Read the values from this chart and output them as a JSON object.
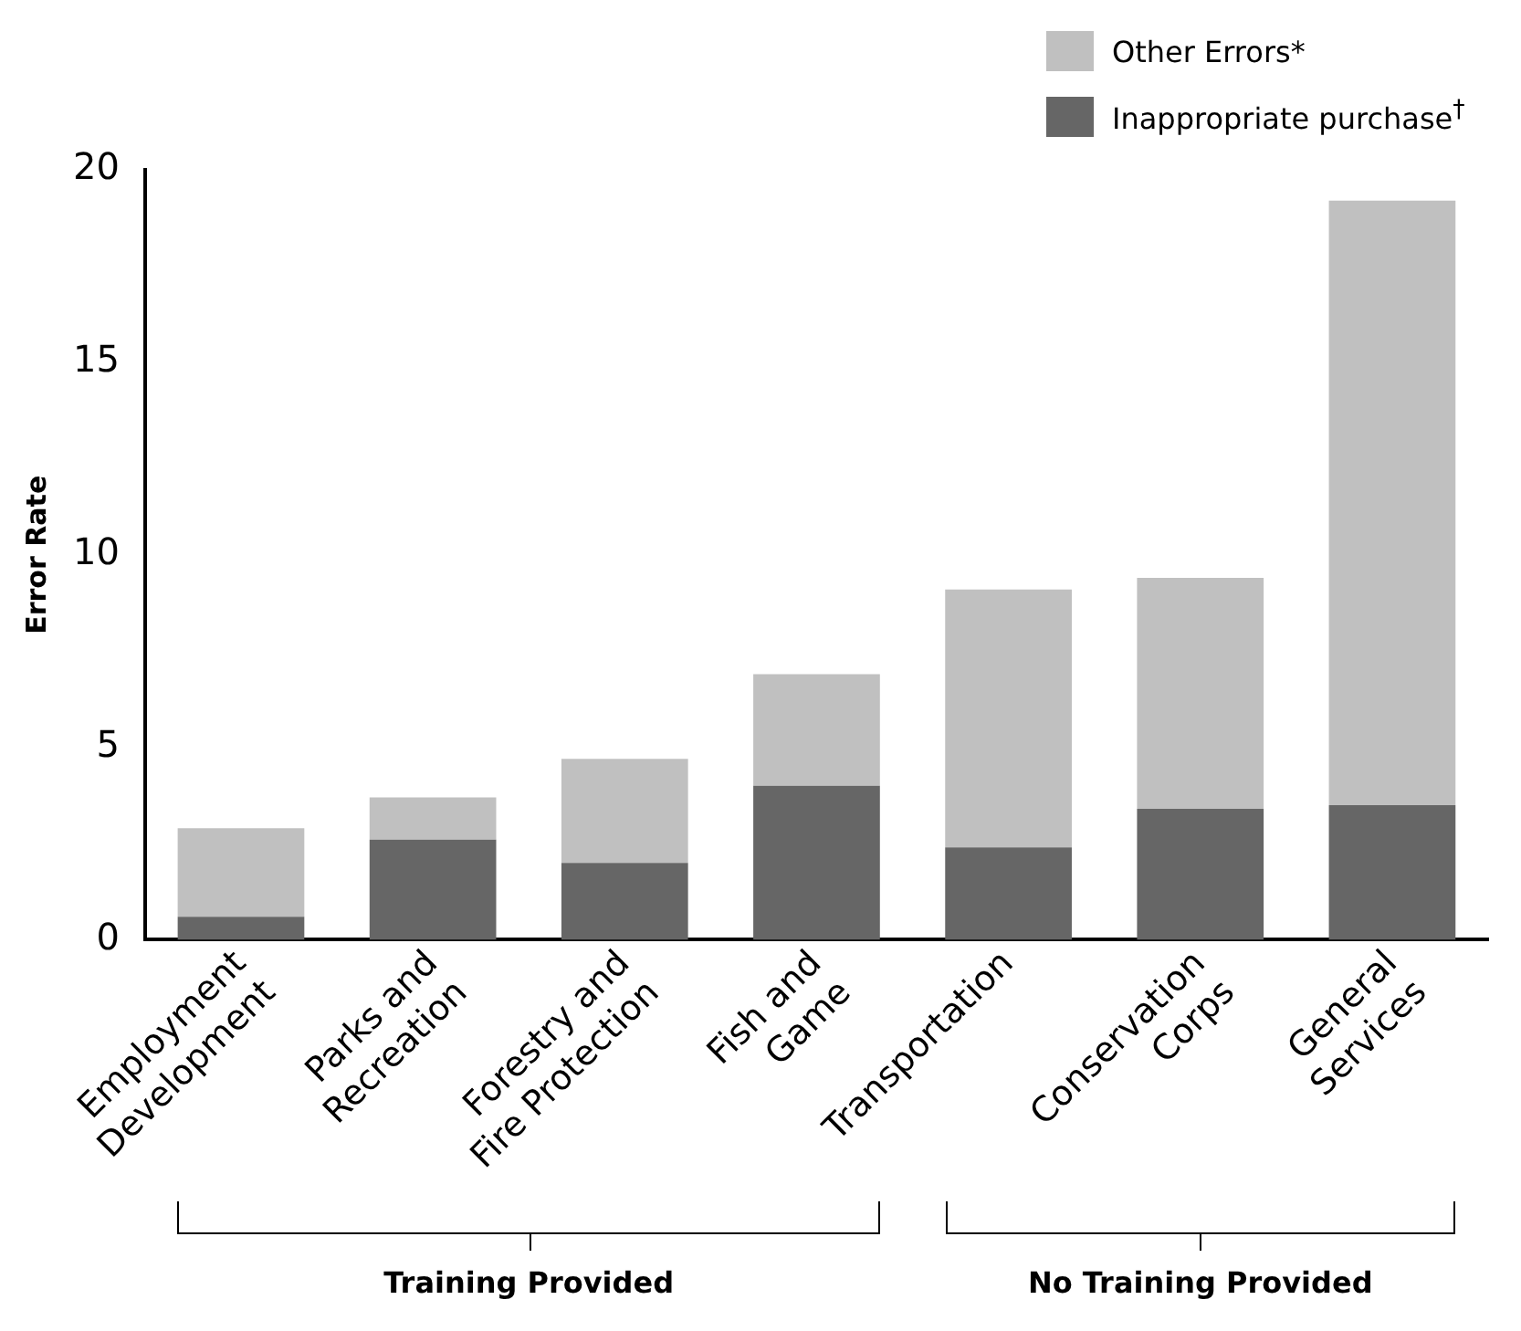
{
  "chart_data": {
    "type": "bar",
    "stacked": true,
    "ylabel": "Error Rate",
    "categories": [
      "Employment Development",
      "Parks and Recreation",
      "Forestry and Fire Protection",
      "Fish and Game",
      "Transportation",
      "Conservation Corps",
      "General Services"
    ],
    "series": [
      {
        "name": "Inappropriate purchase$^{†}$",
        "color": "#666666",
        "values": [
          0.6,
          2.6,
          2.0,
          4.0,
          2.4,
          3.4,
          3.5
        ]
      },
      {
        "name": "Other Errors*",
        "color": "#c0c0c0",
        "values": [
          2.3,
          1.1,
          2.7,
          2.9,
          6.7,
          6.0,
          15.7
        ]
      }
    ],
    "ylim": [
      0,
      20
    ],
    "yticks": [
      0,
      5,
      10,
      15,
      20
    ],
    "grid": false,
    "legend": "top right",
    "annotations": [
      "Training Provided",
      "No Training Provided"
    ]
  }
}
